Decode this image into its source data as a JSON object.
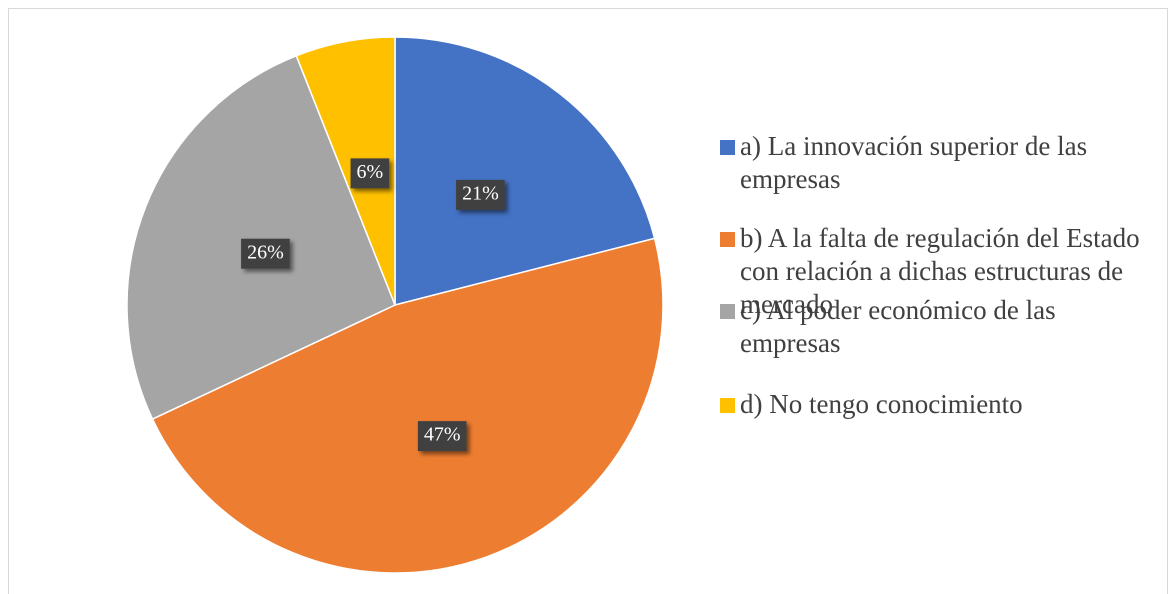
{
  "chart_data": {
    "type": "pie",
    "categories": [
      "a) La innovación superior de las empresas",
      "b) A la falta de regulación del Estado con relación a dichas estructuras de mercado",
      "c) Al poder económico de las empresas",
      "d) No tengo conocimiento"
    ],
    "values": [
      21,
      47,
      26,
      6
    ],
    "value_labels": [
      "21%",
      "47%",
      "26%",
      "6%"
    ],
    "colors": [
      "#4472c4",
      "#ed7d31",
      "#a5a5a5",
      "#ffc000"
    ],
    "legend": "right"
  }
}
